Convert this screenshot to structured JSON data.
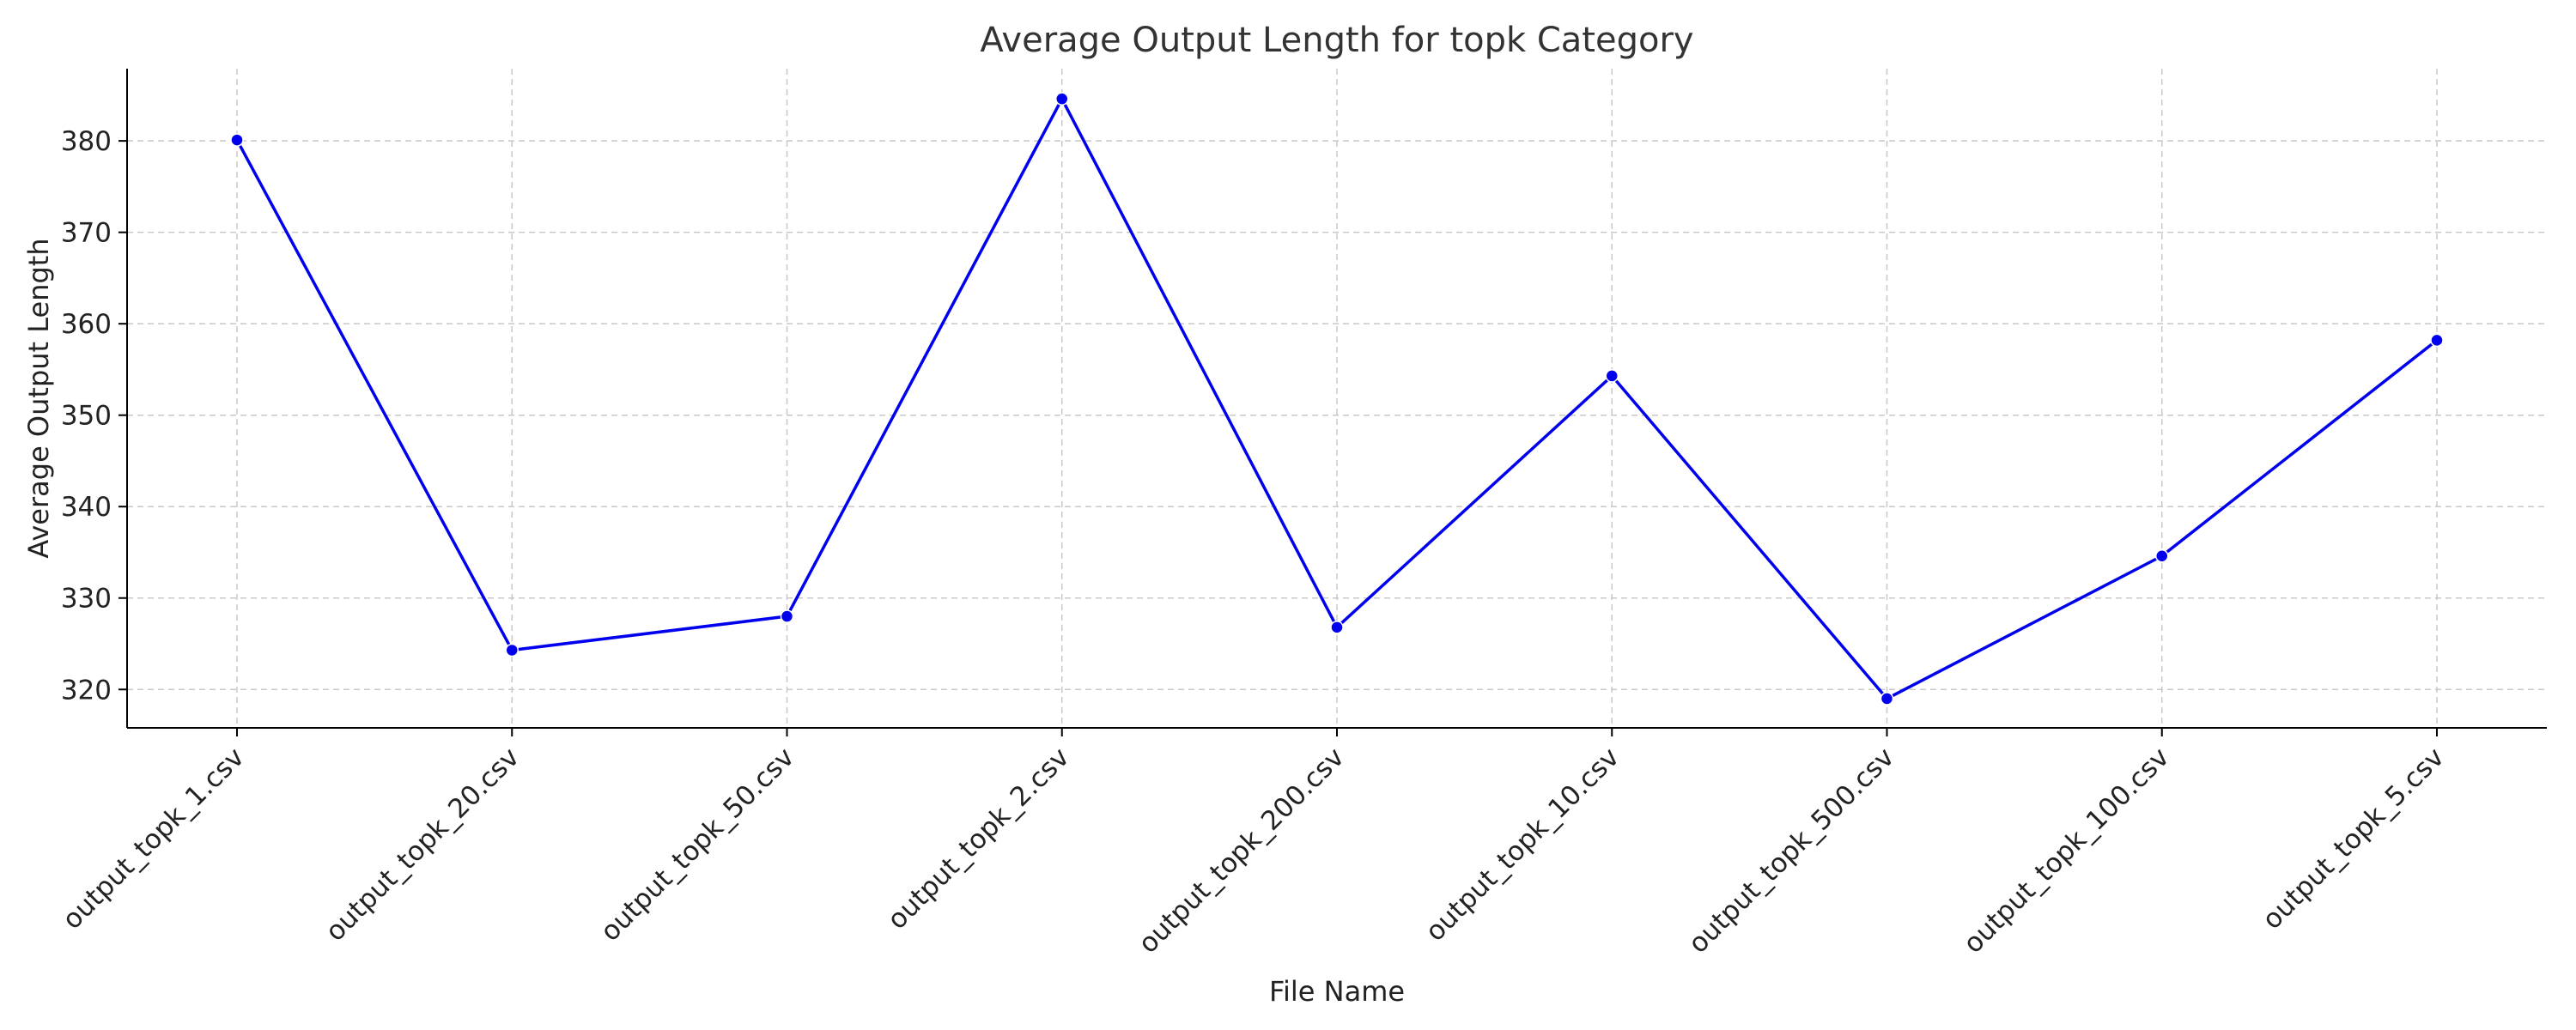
{
  "chart_data": {
    "type": "line",
    "title": "Average Output Length for topk Category",
    "xlabel": "File Name",
    "ylabel": "Average Output Length",
    "categories": [
      "output_topk_1.csv",
      "output_topk_20.csv",
      "output_topk_50.csv",
      "output_topk_2.csv",
      "output_topk_200.csv",
      "output_topk_10.csv",
      "output_topk_500.csv",
      "output_topk_100.csv",
      "output_topk_5.csv"
    ],
    "series": [
      {
        "values": [
          380.1,
          324.3,
          328.0,
          384.6,
          326.8,
          354.3,
          319.0,
          334.6,
          358.2
        ],
        "color": "#0000ee",
        "marker": "circle"
      }
    ],
    "ylim": [
      315.8,
      387.9
    ],
    "yticks": [
      320,
      330,
      340,
      350,
      360,
      370,
      380
    ],
    "grid": true,
    "grid_style": "dashed",
    "legend": "none",
    "spines": [
      "left",
      "bottom"
    ]
  }
}
